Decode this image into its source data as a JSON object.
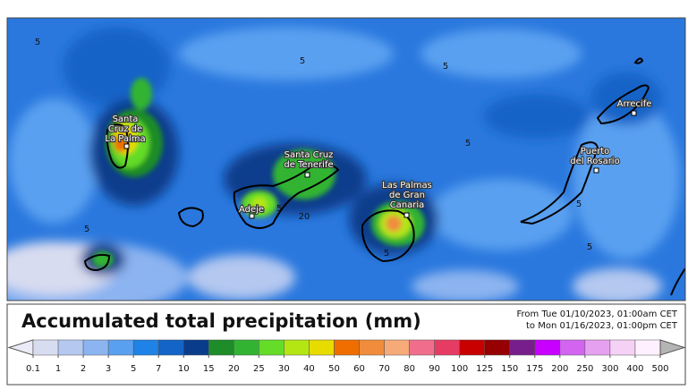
{
  "map": {
    "cities": [
      {
        "lines": [
          "Santa",
          "Cruz de",
          "La Palma"
        ]
      },
      {
        "lines": [
          "Santa Cruz",
          "de Tenerife"
        ]
      },
      {
        "lines": [
          "Adeje"
        ]
      },
      {
        "lines": [
          "Las Palmas",
          "de Gran",
          "Canaria"
        ]
      },
      {
        "lines": [
          "Puerto",
          "del Rosario"
        ]
      },
      {
        "lines": [
          "Arrecife"
        ]
      }
    ],
    "contour_labels": [
      5,
      5,
      5,
      5,
      5,
      5,
      20,
      5,
      5,
      5
    ]
  },
  "legend": {
    "title": "Accumulated total precipitation (mm)",
    "period": [
      "From Tue 01/10/2023, 01:00am CET",
      "to Mon 01/16/2023, 01:00pm CET"
    ],
    "under_color": "#ebebf7",
    "over_color": "#b4b4b4",
    "colors": [
      "#d8dcf0",
      "#b4c8f0",
      "#8cb4f0",
      "#5aa0f0",
      "#1e82e6",
      "#1464c8",
      "#0a3c8c",
      "#1e8c28",
      "#32b432",
      "#64dc28",
      "#b4e614",
      "#e6dc00",
      "#f06e00",
      "#f08c3c",
      "#f5aa78",
      "#f06e8c",
      "#e63c64",
      "#c80000",
      "#960000",
      "#781e8c",
      "#c800ff",
      "#d264f0",
      "#e6a0f0",
      "#f5d2f5",
      "#fff0ff"
    ],
    "ticks": [
      0.1,
      1,
      2,
      3,
      5,
      7,
      10,
      15,
      20,
      25,
      30,
      40,
      50,
      60,
      70,
      80,
      90,
      100,
      125,
      150,
      175,
      200,
      250,
      300,
      400,
      500
    ]
  }
}
